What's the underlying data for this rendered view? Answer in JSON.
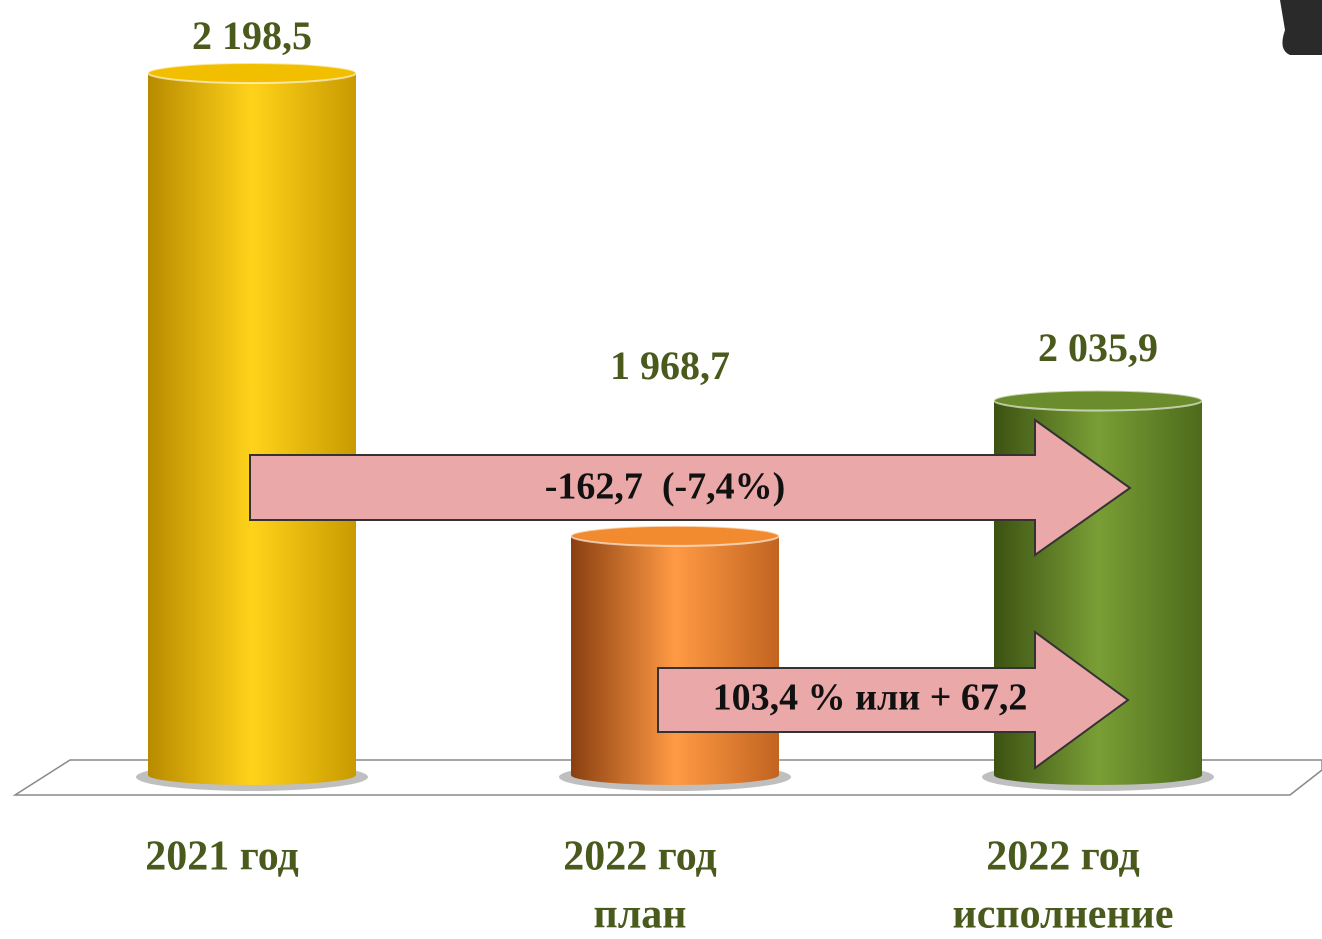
{
  "chart_data": {
    "type": "bar",
    "categories": [
      [
        "2021 год"
      ],
      [
        "2022 год",
        "план"
      ],
      [
        "2022 год",
        "исполнение"
      ]
    ],
    "values": [
      2198.5,
      1968.7,
      2035.9
    ],
    "value_labels": [
      "2 198,5",
      "1 968,7",
      "2 035,9"
    ],
    "colors": [
      "#f2bf00",
      "#f28a30",
      "#6b8c2c"
    ],
    "ylim": [
      1850,
      2200
    ],
    "annotations": [
      "-162,7  (-7,4%)",
      "103,4 % или + 67,2"
    ]
  }
}
